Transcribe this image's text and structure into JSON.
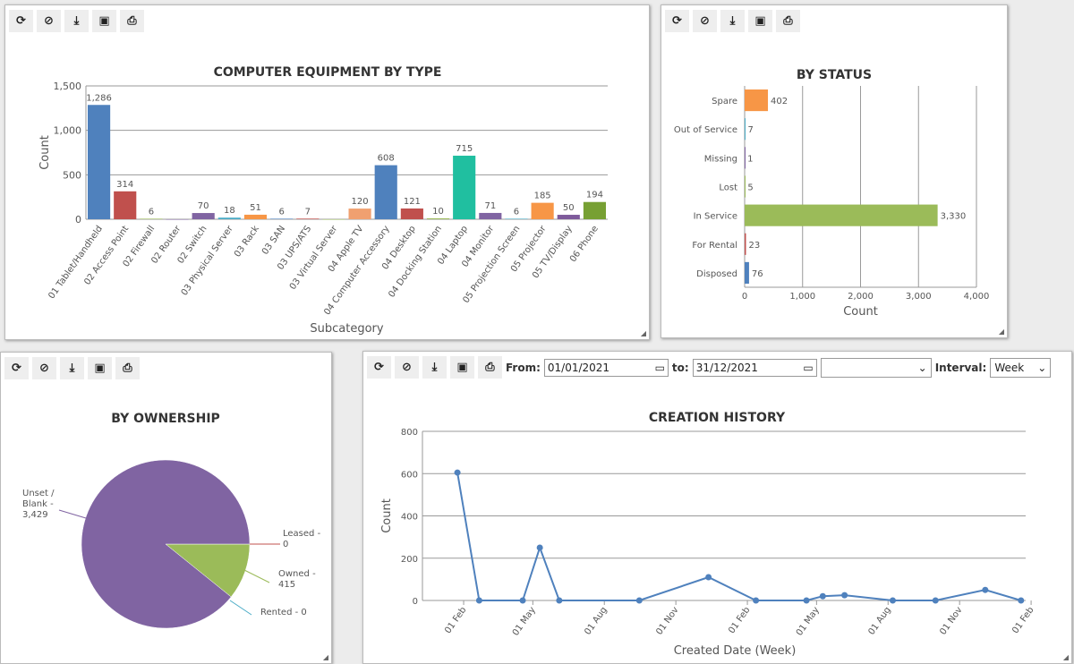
{
  "toolbar_icons": [
    "refresh-icon",
    "hide-icon",
    "download-icon",
    "image-icon",
    "print-icon"
  ],
  "filters": {
    "from_label": "From:",
    "from_value": "01/01/2021",
    "to_label": "to:",
    "to_value": "31/12/2021",
    "select_value": "",
    "interval_label": "Interval:",
    "interval_value": "Week"
  },
  "chart_data": [
    {
      "type": "bar",
      "title": "COMPUTER EQUIPMENT BY TYPE",
      "xlabel": "Subcategory",
      "ylabel": "Count",
      "ylim": [
        0,
        1500
      ],
      "yticks": [
        "0",
        "500",
        "1,000",
        "1,500"
      ],
      "grid": true,
      "categories": [
        "01 Tablet/Handheld",
        "02 Access Point",
        "02 Firewall",
        "02 Router",
        "02 Switch",
        "03 Physical Server",
        "03 Rack",
        "03 SAN",
        "03 UPS/ATS",
        "03 Virtual Server",
        "04 Apple TV",
        "04 Computer Accessory",
        "04 Desktop",
        "04 Docking Station",
        "04 Laptop",
        "04 Monitor",
        "05 Projection Screen",
        "05 Projector",
        "05 TV/Display",
        "06 Phone"
      ],
      "values": [
        1286,
        314,
        6,
        null,
        70,
        18,
        51,
        6,
        7,
        null,
        120,
        608,
        121,
        10,
        715,
        71,
        6,
        185,
        50,
        194
      ],
      "labels": [
        "1,286",
        "314",
        "6",
        "",
        "70",
        "18",
        "51",
        "6",
        "7",
        "",
        "120",
        "608",
        "121",
        "10",
        "715",
        "71",
        "6",
        "185",
        "50",
        "194"
      ],
      "colors": [
        "#4f81bd",
        "#c0504d",
        "#9bbb59",
        "#8064a2",
        "#8064a2",
        "#4bacc6",
        "#f79646",
        "#4f81bd",
        "#c0504d",
        "#9bbb59",
        "#f0a070",
        "#4f81bd",
        "#c0504d",
        "#9bbb59",
        "#20bfa0",
        "#8064a2",
        "#4bacc6",
        "#f79646",
        "#7e5a9b",
        "#77a033"
      ]
    },
    {
      "type": "bar",
      "orientation": "horizontal",
      "title": "BY STATUS",
      "xlabel": "Count",
      "xlim": [
        0,
        4000
      ],
      "xticks": [
        "0",
        "1,000",
        "2,000",
        "3,000",
        "4,000"
      ],
      "grid": true,
      "categories": [
        "Spare",
        "Out of Service",
        "Missing",
        "Lost",
        "In Service",
        "For Rental",
        "Disposed"
      ],
      "values": [
        402,
        7,
        1,
        5,
        3330,
        23,
        76
      ],
      "labels": [
        "402",
        "7",
        "1",
        "5",
        "3,330",
        "23",
        "76"
      ],
      "colors": [
        "#f79646",
        "#4bacc6",
        "#8064a2",
        "#9bbb59",
        "#9bbb59",
        "#c0504d",
        "#4f81bd"
      ]
    },
    {
      "type": "pie",
      "title": "BY OWNERSHIP",
      "slices": [
        {
          "name": "Leased",
          "value": 0,
          "label": "Leased - 0",
          "color": "#c0504d"
        },
        {
          "name": "Owned",
          "value": 415,
          "label": "Owned - 415",
          "color": "#9bbb59"
        },
        {
          "name": "Rented",
          "value": 0,
          "label": "Rented - 0",
          "color": "#4bacc6"
        },
        {
          "name": "Unset / Blank",
          "value": 3429,
          "label": "Unset / Blank - 3,429",
          "color": "#8064a2"
        }
      ]
    },
    {
      "type": "line",
      "title": "CREATION HISTORY",
      "xlabel": "Created Date (Week)",
      "ylabel": "Count",
      "ylim": [
        0,
        800
      ],
      "yticks": [
        "0",
        "200",
        "400",
        "600",
        "800"
      ],
      "xlim": [
        "2020-12-10",
        "2023-01-25"
      ],
      "grid": true,
      "color": "#4f81bd",
      "xticks": [
        {
          "date": "2021-02-01",
          "label": "01 Feb"
        },
        {
          "date": "2021-05-01",
          "label": "01 May"
        },
        {
          "date": "2021-08-01",
          "label": "01 Aug"
        },
        {
          "date": "2021-11-01",
          "label": "01 Nov"
        },
        {
          "date": "2022-02-01",
          "label": "01 Feb"
        },
        {
          "date": "2022-05-01",
          "label": "01 May"
        },
        {
          "date": "2022-08-01",
          "label": "01 Aug"
        },
        {
          "date": "2022-11-01",
          "label": "01 Nov"
        },
        {
          "date": "2023-02-01",
          "label": "01 Feb"
        }
      ],
      "points": [
        [
          "2021-01-24",
          605
        ],
        [
          "2021-02-21",
          0
        ],
        [
          "2021-04-18",
          0
        ],
        [
          "2021-05-10",
          250
        ],
        [
          "2021-06-04",
          0
        ],
        [
          "2021-09-15",
          0
        ],
        [
          "2021-12-13",
          110
        ],
        [
          "2022-02-12",
          0
        ],
        [
          "2022-04-18",
          0
        ],
        [
          "2022-05-09",
          20
        ],
        [
          "2022-06-06",
          25
        ],
        [
          "2022-08-07",
          0
        ],
        [
          "2022-10-01",
          0
        ],
        [
          "2022-12-04",
          50
        ],
        [
          "2023-01-19",
          0
        ]
      ]
    }
  ]
}
